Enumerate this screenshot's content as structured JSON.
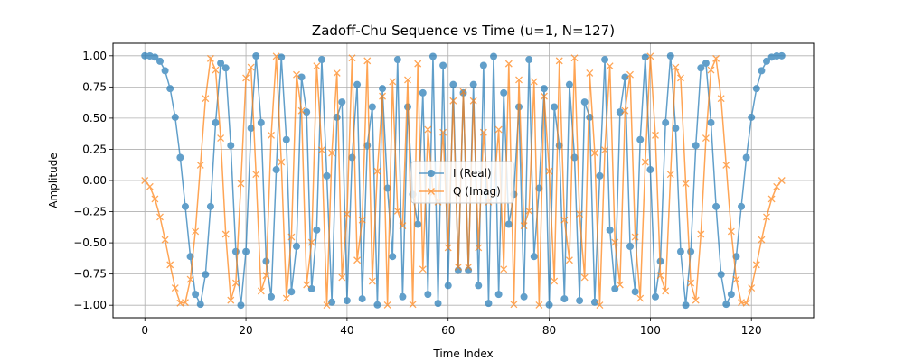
{
  "chart_data": {
    "type": "line",
    "title": "Zadoff-Chu Sequence vs Time (u=1, N=127)",
    "xlabel": "Time Index",
    "ylabel": "Amplitude",
    "xlim": [
      -6.3,
      132.3
    ],
    "ylim": [
      -1.1,
      1.1
    ],
    "xticks": [
      0,
      20,
      40,
      60,
      80,
      100,
      120
    ],
    "yticks": [
      -1.0,
      -0.75,
      -0.5,
      -0.25,
      0.0,
      0.25,
      0.5,
      0.75,
      1.0
    ],
    "xtick_labels": [
      "0",
      "20",
      "40",
      "60",
      "80",
      "100",
      "120"
    ],
    "ytick_labels": [
      "−1.00",
      "−0.75",
      "−0.50",
      "−0.25",
      "0.00",
      "0.25",
      "0.50",
      "0.75",
      "1.00"
    ],
    "grid": true,
    "legend_position": "center",
    "sequence": {
      "u": 1,
      "N": 127,
      "count": 127
    },
    "series": [
      {
        "name": "I (Real)",
        "component": "cos",
        "marker": "circle",
        "color": "#1f77b4",
        "alpha": 0.7
      },
      {
        "name": "Q (Imag)",
        "component": "-sin",
        "marker": "x",
        "color": "#ff7f0e",
        "alpha": 0.7
      }
    ]
  }
}
